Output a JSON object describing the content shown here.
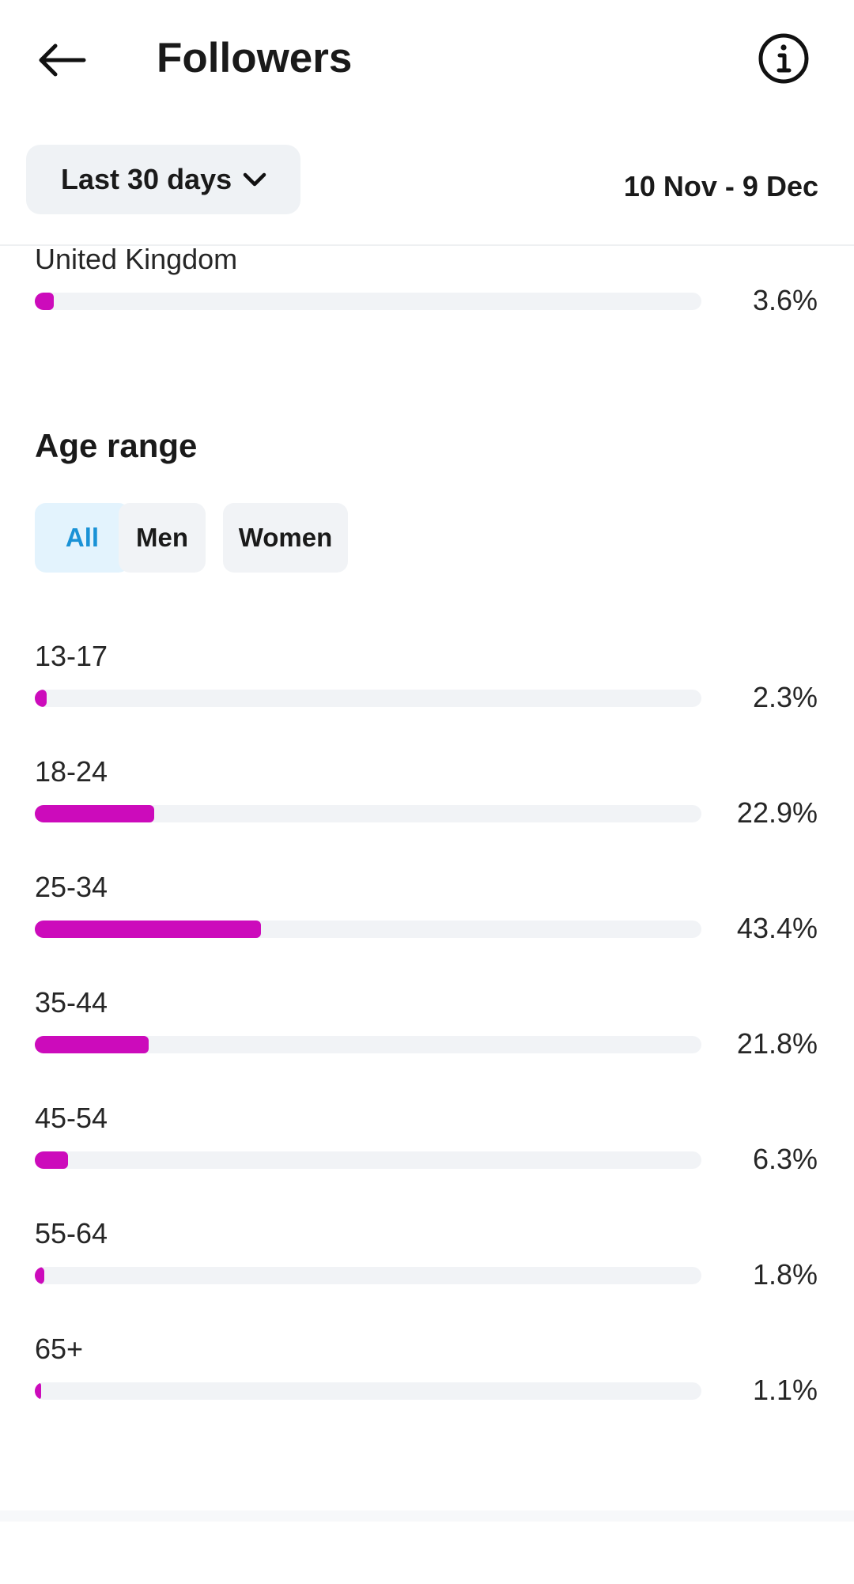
{
  "header": {
    "title": "Followers",
    "back_icon": "arrow-left-icon",
    "info_icon": "info-icon"
  },
  "filters": {
    "period_label": "Last 30 days",
    "date_range": "10 Nov - 9 Dec"
  },
  "location": {
    "items": [
      {
        "label": "United Kingdom",
        "value": "3.6%",
        "pct": 3.6
      }
    ]
  },
  "age_range": {
    "title": "Age range",
    "segments": [
      {
        "label": "All",
        "active": true
      },
      {
        "label": "Men",
        "active": false
      },
      {
        "label": "Women",
        "active": false
      }
    ],
    "rows": [
      {
        "label": "13-17",
        "value": "2.3%",
        "pct": 2.3
      },
      {
        "label": "18-24",
        "value": "22.9%",
        "pct": 22.9
      },
      {
        "label": "25-34",
        "value": "43.4%",
        "pct": 43.4
      },
      {
        "label": "35-44",
        "value": "21.8%",
        "pct": 21.8
      },
      {
        "label": "45-54",
        "value": "6.3%",
        "pct": 6.3
      },
      {
        "label": "55-64",
        "value": "1.8%",
        "pct": 1.8
      },
      {
        "label": "65+",
        "value": "1.1%",
        "pct": 1.1
      }
    ]
  },
  "colors": {
    "bar_fill": "#cc0bbb",
    "bar_track": "#f1f3f6",
    "active_segment_text": "#1a92d6",
    "active_segment_bg": "#e3f3fd"
  },
  "chart_data": {
    "type": "bar",
    "categories": [
      "13-17",
      "18-24",
      "25-34",
      "35-44",
      "45-54",
      "55-64",
      "65+"
    ],
    "values": [
      2.3,
      22.9,
      43.4,
      21.8,
      6.3,
      1.8,
      1.1
    ],
    "title": "Age range"
  }
}
